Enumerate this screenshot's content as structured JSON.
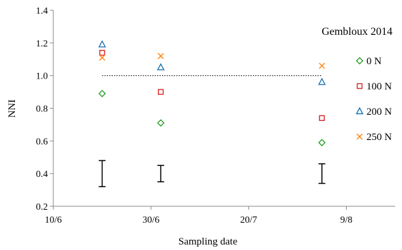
{
  "chart_data": {
    "type": "scatter",
    "title": "Gembloux 2014",
    "xlabel": "Sampling date",
    "ylabel": "NNI",
    "x_axis": {
      "type": "date",
      "range": [
        "2014-06-10",
        "2014-08-19"
      ],
      "tick_values": [
        "2014-06-10",
        "2014-06-30",
        "2014-07-20",
        "2014-08-09"
      ],
      "tick_labels": [
        "10/6",
        "30/6",
        "20/7",
        "9/8"
      ]
    },
    "y_axis": {
      "range": [
        0.2,
        1.4
      ],
      "tick_values": [
        0.2,
        0.4,
        0.6,
        0.8,
        1.0,
        1.2,
        1.4
      ],
      "tick_labels": [
        "0.2",
        "0.4",
        "0.6",
        "0.8",
        "1.0",
        "1.2",
        "1.4"
      ]
    },
    "grid": false,
    "legend_position": "right",
    "reference_line": {
      "y": 1.0,
      "x_range": [
        "2014-06-20",
        "2014-08-04"
      ],
      "style": "dotted"
    },
    "series": [
      {
        "name": "0 N",
        "marker": "diamond",
        "color": "#2ca02c",
        "points": [
          {
            "x": "2014-06-20",
            "y": 0.89
          },
          {
            "x": "2014-07-02",
            "y": 0.71
          },
          {
            "x": "2014-08-04",
            "y": 0.59
          }
        ]
      },
      {
        "name": "100 N",
        "marker": "square",
        "color": "#d62728",
        "points": [
          {
            "x": "2014-06-20",
            "y": 1.14
          },
          {
            "x": "2014-07-02",
            "y": 0.9
          },
          {
            "x": "2014-08-04",
            "y": 0.74
          }
        ]
      },
      {
        "name": "200 N",
        "marker": "triangle",
        "color": "#1f77b4",
        "points": [
          {
            "x": "2014-06-20",
            "y": 1.19
          },
          {
            "x": "2014-07-02",
            "y": 1.05
          },
          {
            "x": "2014-08-04",
            "y": 0.96
          }
        ]
      },
      {
        "name": "250 N",
        "marker": "cross",
        "color": "#ff7f0e",
        "points": [
          {
            "x": "2014-06-20",
            "y": 1.11
          },
          {
            "x": "2014-07-02",
            "y": 1.12
          },
          {
            "x": "2014-08-04",
            "y": 1.06
          }
        ]
      }
    ],
    "error_bars": [
      {
        "x": "2014-06-20",
        "low": 0.32,
        "high": 0.48
      },
      {
        "x": "2014-07-02",
        "low": 0.35,
        "high": 0.45
      },
      {
        "x": "2014-08-04",
        "low": 0.34,
        "high": 0.46
      }
    ]
  }
}
